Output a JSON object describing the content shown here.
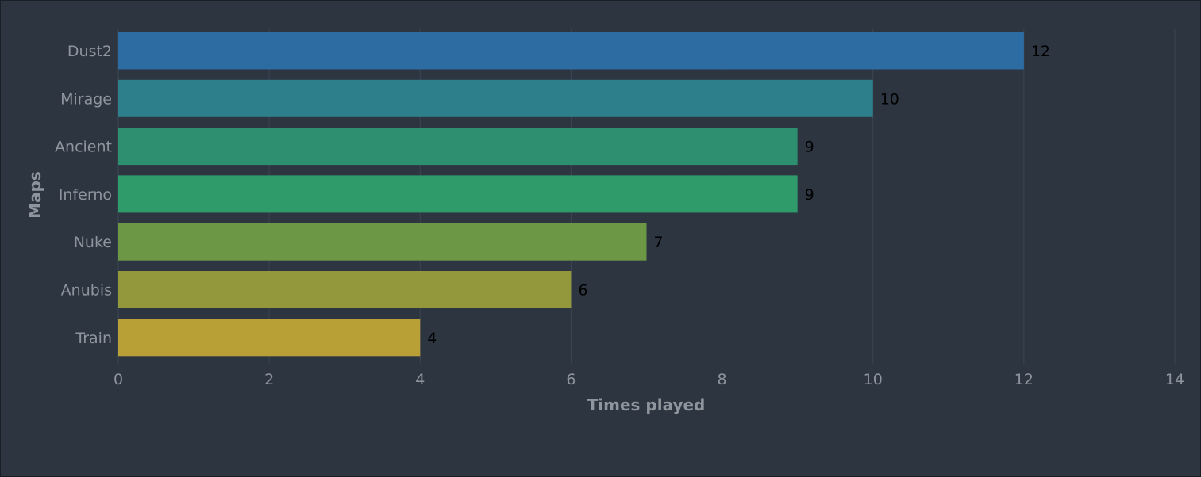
{
  "chart_data": {
    "type": "bar",
    "orientation": "horizontal",
    "categories": [
      "Dust2",
      "Mirage",
      "Ancient",
      "Inferno",
      "Nuke",
      "Anubis",
      "Train"
    ],
    "values": [
      12,
      10,
      9,
      9,
      7,
      6,
      4
    ],
    "colors": [
      "#2d6ca3",
      "#2c7f8b",
      "#2d8e70",
      "#2f9b6b",
      "#6c9745",
      "#93983c",
      "#b8a036"
    ],
    "xlabel": "Times played",
    "ylabel": "Maps",
    "xlim": [
      0,
      14
    ],
    "xticks": [
      "0",
      "2",
      "4",
      "6",
      "8",
      "10",
      "12",
      "14"
    ],
    "grid": true,
    "data_labels": true,
    "background": "#2d3541",
    "grid_color": "#3c4552",
    "text_color": "#8f959d"
  }
}
